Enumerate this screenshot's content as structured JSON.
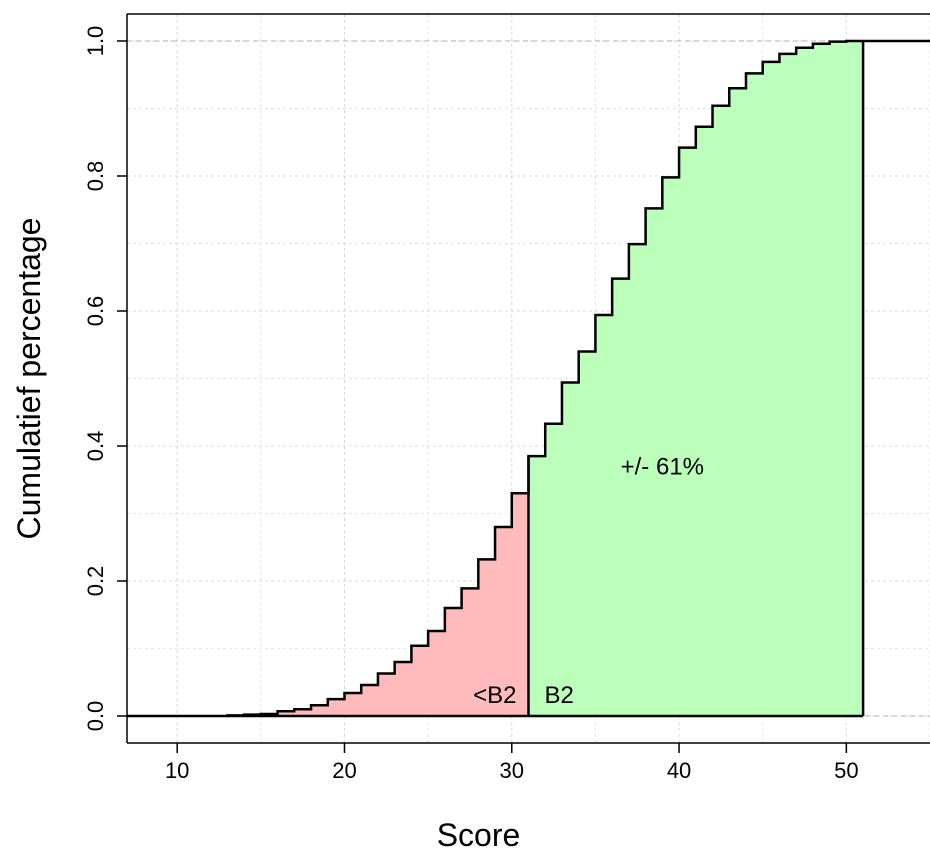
{
  "chart_data": {
    "type": "area",
    "xlabel": "Score",
    "ylabel": "Cumulatief percentage",
    "xlim": [
      7,
      55
    ],
    "ylim": [
      -0.04,
      1.04
    ],
    "x_ticks": [
      "10",
      "20",
      "30",
      "40",
      "50"
    ],
    "x_tick_values": [
      10,
      20,
      30,
      40,
      50
    ],
    "y_ticks": [
      "0.0",
      "0.2",
      "0.4",
      "0.6",
      "0.8",
      "1.0"
    ],
    "y_tick_values": [
      0,
      0.2,
      0.4,
      0.6,
      0.8,
      1.0
    ],
    "grid": true,
    "threshold_score": 31,
    "max_score": 51,
    "series": [
      {
        "x": [
          13,
          14,
          15,
          16,
          17,
          18,
          19,
          20,
          21,
          22,
          23,
          24,
          25,
          26,
          27,
          28,
          29,
          30,
          31,
          32,
          33,
          34,
          35,
          36,
          37,
          38,
          39,
          40,
          41,
          42,
          43,
          44,
          45,
          46,
          47,
          48,
          49,
          50,
          51
        ],
        "y": [
          0.001,
          0.002,
          0.003,
          0.007,
          0.01,
          0.016,
          0.025,
          0.034,
          0.046,
          0.063,
          0.08,
          0.104,
          0.126,
          0.16,
          0.189,
          0.232,
          0.28,
          0.33,
          0.385,
          0.433,
          0.494,
          0.54,
          0.594,
          0.648,
          0.699,
          0.752,
          0.798,
          0.842,
          0.873,
          0.904,
          0.93,
          0.952,
          0.969,
          0.981,
          0.99,
          0.996,
          0.999,
          1.0,
          1.0
        ]
      }
    ],
    "regions": [
      {
        "label": "<B2",
        "color": "#FFBBBB"
      },
      {
        "label": "B2",
        "color": "#BBFFBB"
      }
    ],
    "annotations": [
      {
        "text": "+/- 61%",
        "x": 39,
        "y": 0.37
      }
    ]
  }
}
